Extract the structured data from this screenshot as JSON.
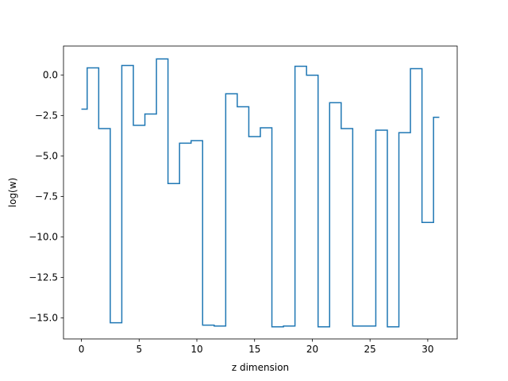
{
  "chart_data": {
    "type": "line",
    "drawstyle": "steps-mid",
    "title": "",
    "xlabel": "z dimension",
    "ylabel": "log(w)",
    "xlim": [
      -1.55,
      32.55
    ],
    "ylim": [
      -16.3,
      1.8
    ],
    "xticks": [
      0,
      5,
      10,
      15,
      20,
      25,
      30
    ],
    "xtick_labels": [
      "0",
      "5",
      "10",
      "15",
      "20",
      "25",
      "30"
    ],
    "yticks": [
      0.0,
      -2.5,
      -5.0,
      -7.5,
      -10.0,
      -12.5,
      -15.0
    ],
    "ytick_labels": [
      "0.0",
      "−2.5",
      "−5.0",
      "−7.5",
      "−10.0",
      "−12.5",
      "−15.0"
    ],
    "grid": false,
    "legend": "none",
    "series": [
      {
        "color": "#1f77b4",
        "x": [
          0,
          1,
          2,
          3,
          4,
          5,
          6,
          7,
          8,
          9,
          10,
          11,
          12,
          13,
          14,
          15,
          16,
          17,
          18,
          19,
          20,
          21,
          22,
          23,
          24,
          25,
          26,
          27,
          28,
          29,
          30,
          31
        ],
        "values": [
          -2.1,
          0.45,
          -3.3,
          -15.3,
          0.6,
          -3.1,
          -2.4,
          1.0,
          -6.7,
          -4.2,
          -4.05,
          -15.45,
          -15.5,
          -1.15,
          -1.95,
          -3.8,
          -3.25,
          -15.55,
          -15.5,
          0.55,
          0.0,
          -15.55,
          -1.7,
          -3.3,
          -15.5,
          -15.5,
          -3.4,
          -15.55,
          -3.55,
          0.4,
          -9.1,
          -2.6
        ]
      }
    ]
  }
}
